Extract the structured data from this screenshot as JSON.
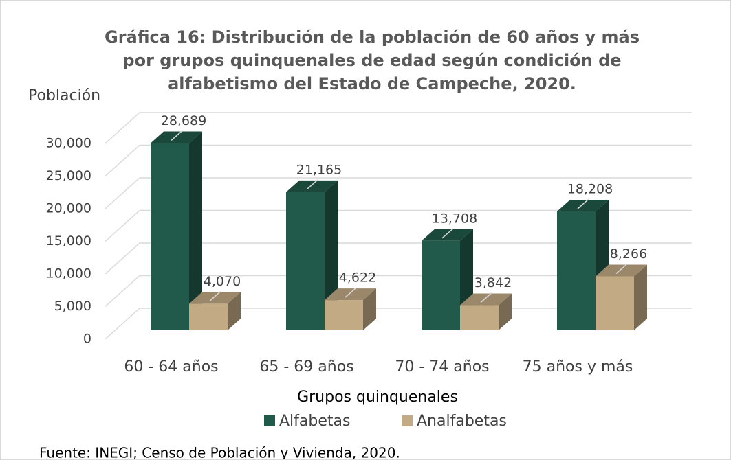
{
  "chart_data": {
    "type": "bar3d",
    "title": "Gráfica 16: Distribución de la población de 60 años y más por grupos quinquenales de edad según condición de alfabetismo del Estado de Campeche, 2020.",
    "y_label": "Población",
    "x_label": "Grupos quinquenales",
    "source": "Fuente: INEGI; Censo de Población y Vivienda, 2020.",
    "categories": [
      "60 - 64 años",
      "65 - 69 años",
      "70 - 74 años",
      "75 años y más"
    ],
    "series": [
      {
        "name": "Alfabetas",
        "color": "#215a4a",
        "values": [
          28689,
          21165,
          13708,
          18208
        ],
        "value_labels": [
          "28,689",
          "21,165",
          "13,708",
          "18,208"
        ]
      },
      {
        "name": "Analfabetas",
        "color": "#c2aa84",
        "values": [
          4070,
          4622,
          3842,
          8266
        ],
        "value_labels": [
          "4,070",
          "4,622",
          "3,842",
          "8,266"
        ]
      }
    ],
    "ylim": [
      0,
      30000
    ],
    "yticks": [
      0,
      {
        "value": 5000,
        "label": "5,000"
      },
      {
        "value": 10000,
        "label": "10,000"
      },
      {
        "value": 15000,
        "label": "15,000"
      },
      {
        "value": 20000,
        "label": "20,000"
      },
      {
        "value": 25000,
        "label": "25,000"
      },
      {
        "value": 30000,
        "label": "30,000"
      }
    ],
    "grid": true,
    "legend": "bottom"
  }
}
